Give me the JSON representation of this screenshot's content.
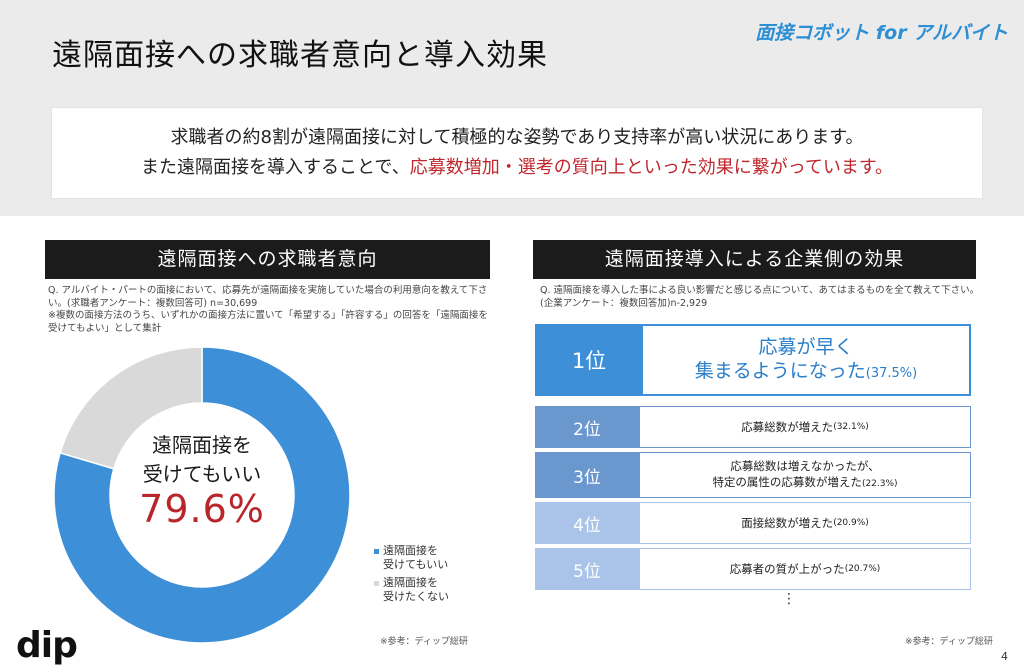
{
  "header": {
    "title": "遠隔面接への求職者意向と導入効果",
    "brand": "面接コボット for アルバイト"
  },
  "summary": {
    "line1": "求職者の約8割が遠隔面接に対して積極的な姿勢であり支持率が高い状況にあります。",
    "line2_prefix": "また遠隔面接を導入することで、",
    "line2_highlight": "応募数増加・選考の質向上といった効果に繋がっています。"
  },
  "left": {
    "header": "遠隔面接への求職者意向",
    "note1": "Q. アルバイト・パートの面接において、応募先が遠隔面接を実施していた場合の利用意向を教えて下さい。(求職者アンケート：複数回答可) n=30,699",
    "note2": "※複数の面接方法のうち、いずれかの面接方法に置いて「希望する」「許容する」の回答を「遠隔面接を受けてもよい」として集計",
    "center_label_line1": "遠隔面接を",
    "center_label_line2": "受けてもいい",
    "center_value": "79.6%",
    "legend": [
      {
        "label_line1": "遠隔面接を",
        "label_line2": "受けてもいい",
        "color": "#3d8fd8"
      },
      {
        "label_line1": "遠隔面接を",
        "label_line2": "受けたくない",
        "color": "#d9d9d9"
      }
    ],
    "ref": "※参考：ディップ総研"
  },
  "chart_data": {
    "type": "pie",
    "categories": [
      "遠隔面接を受けてもいい",
      "遠隔面接を受けたくない"
    ],
    "values": [
      79.6,
      20.4
    ],
    "colors": [
      "#3d8fd8",
      "#d9d9d9"
    ]
  },
  "right": {
    "header": "遠隔面接導入による企業側の効果",
    "note1": "Q. 遠隔面接を導入した事による良い影響だと感じる点について、あてはまるものを全て教えて下さい。",
    "note2": "(企業アンケート：複数回答加)n-2,929",
    "ranks": [
      {
        "rank": "1位",
        "line1": "応募が早く",
        "line2": "集まるようになった",
        "pct": "(37.5%)",
        "color": "#3d8fd8"
      },
      {
        "rank": "2位",
        "line1": "応募総数が増えた",
        "line2": "",
        "pct": "(32.1%)",
        "color": "#6b97cf"
      },
      {
        "rank": "3位",
        "line1": "応募総数は増えなかったが、",
        "line2": "特定の属性の応募数が増えた",
        "pct": "(22.3%)",
        "color": "#6b97cf"
      },
      {
        "rank": "4位",
        "line1": "面接総数が増えた",
        "line2": "",
        "pct": "(20.9%)",
        "color": "#a9c4e8"
      },
      {
        "rank": "5位",
        "line1": "応募者の質が上がった",
        "line2": "",
        "pct": "(20.7%)",
        "color": "#a9c4e8"
      }
    ],
    "ellipsis": "⋮",
    "ref": "※参考：ディップ総研"
  },
  "footer": {
    "logo": "dip",
    "page": "4"
  }
}
